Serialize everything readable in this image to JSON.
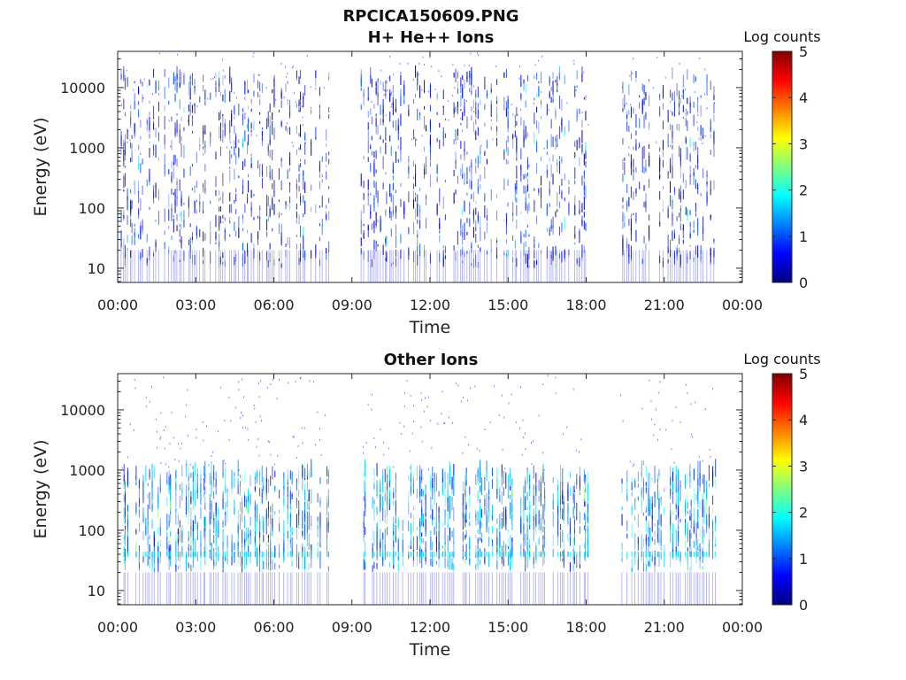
{
  "figure_title": "RPCICA150609.PNG",
  "colormap": [
    "#00007f",
    "#0000ff",
    "#007fff",
    "#00ffff",
    "#7fff7f",
    "#ffff00",
    "#ff7f00",
    "#ff0000",
    "#7f0000"
  ],
  "chart_data": [
    {
      "type": "heatmap",
      "title": "H+ He++ Ions",
      "xlabel": "Time",
      "ylabel": "Energy (eV)",
      "x_ticks": [
        "00:00",
        "03:00",
        "06:00",
        "09:00",
        "12:00",
        "15:00",
        "18:00",
        "21:00",
        "00:00"
      ],
      "xlim_hours": [
        0,
        24
      ],
      "y_scale": "log",
      "ylim": [
        5.8,
        40000
      ],
      "y_ticks": [
        10,
        100,
        1000,
        10000
      ],
      "y_tick_labels": [
        "10",
        "100",
        "1000",
        "10000"
      ],
      "colorbar": {
        "label": "Log counts",
        "range": [
          0,
          5
        ],
        "ticks": [
          "0",
          "1",
          "2",
          "3",
          "4",
          "5"
        ]
      },
      "data_gaps_hours": [
        [
          8.1,
          9.3
        ],
        [
          18.1,
          19.3
        ]
      ],
      "data_coverage_hours": [
        0.1,
        23.0
      ],
      "dominant_energy_range_eV": [
        10,
        15000
      ],
      "typical_log_counts": [
        0,
        1.2
      ],
      "peak_log_counts": 2.0
    },
    {
      "type": "heatmap",
      "title": "Other Ions",
      "xlabel": "Time",
      "ylabel": "Energy (eV)",
      "x_ticks": [
        "00:00",
        "03:00",
        "06:00",
        "09:00",
        "12:00",
        "15:00",
        "18:00",
        "21:00",
        "00:00"
      ],
      "xlim_hours": [
        0,
        24
      ],
      "y_scale": "log",
      "ylim": [
        5.8,
        40000
      ],
      "y_ticks": [
        10,
        100,
        1000,
        10000
      ],
      "y_tick_labels": [
        "10",
        "100",
        "1000",
        "10000"
      ],
      "colorbar": {
        "label": "Log counts",
        "range": [
          0,
          5
        ],
        "ticks": [
          "0",
          "1",
          "2",
          "3",
          "4",
          "5"
        ]
      },
      "data_gaps_hours": [
        [
          8.1,
          9.3
        ],
        [
          18.1,
          19.3
        ]
      ],
      "data_coverage_hours": [
        0.1,
        23.0
      ],
      "dominant_energy_range_eV": [
        20,
        800
      ],
      "band_energy_eV": 40,
      "typical_log_counts": [
        0.5,
        2.0
      ],
      "peak_log_counts": 2.6
    }
  ]
}
